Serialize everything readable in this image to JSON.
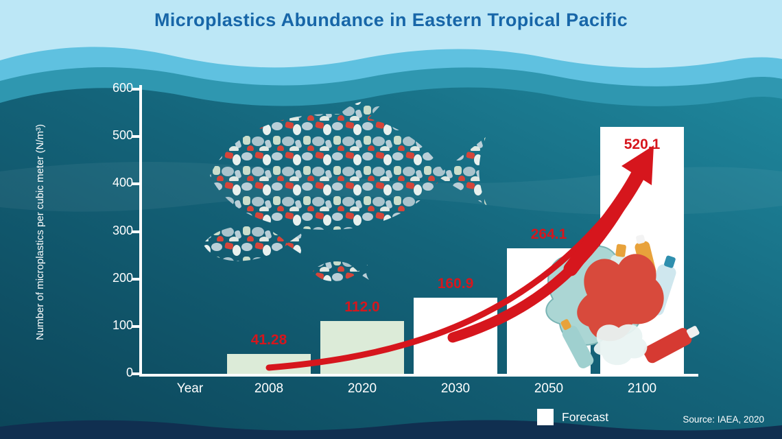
{
  "title": "Microplastics Abundance in Eastern Tropical Pacific",
  "source": "Source: IAEA, 2020",
  "legend": {
    "forecast": "Forecast"
  },
  "chart_data": {
    "type": "bar",
    "title": "Microplastics Abundance in Eastern Tropical Pacific",
    "ylabel": "Number of microplastics per cubic meter (N/m³)",
    "xlabel": "Year",
    "categories": [
      "2008",
      "2020",
      "2030",
      "2050",
      "2100"
    ],
    "values": [
      41.28,
      112.0,
      160.9,
      264.1,
      520.1
    ],
    "value_labels": [
      "41.28",
      "112.0",
      "160.9",
      "264.1",
      "520.1"
    ],
    "yticks": [
      0,
      100,
      200,
      300,
      400,
      500,
      600
    ],
    "ylim": [
      0,
      600
    ],
    "grid": false,
    "legend_position": "bottom-right",
    "forecast_flags": [
      false,
      false,
      true,
      true,
      true
    ],
    "series_colors": {
      "observed": "#dcebd8",
      "forecast": "#ffffff"
    },
    "annotation": "rising red trend arrow from 2008 to 2100"
  },
  "colors": {
    "title": "#1766a8",
    "value_label": "#d6161d",
    "arrow": "#d6161d",
    "axis": "#ffffff",
    "sky": "#bce7f6",
    "wave_mid": "#5fc1e0",
    "wave_deep": "#2f97b0",
    "ocean_dark": "#0c4559",
    "ocean_light": "#1f879d",
    "seabed": "#102f50"
  }
}
